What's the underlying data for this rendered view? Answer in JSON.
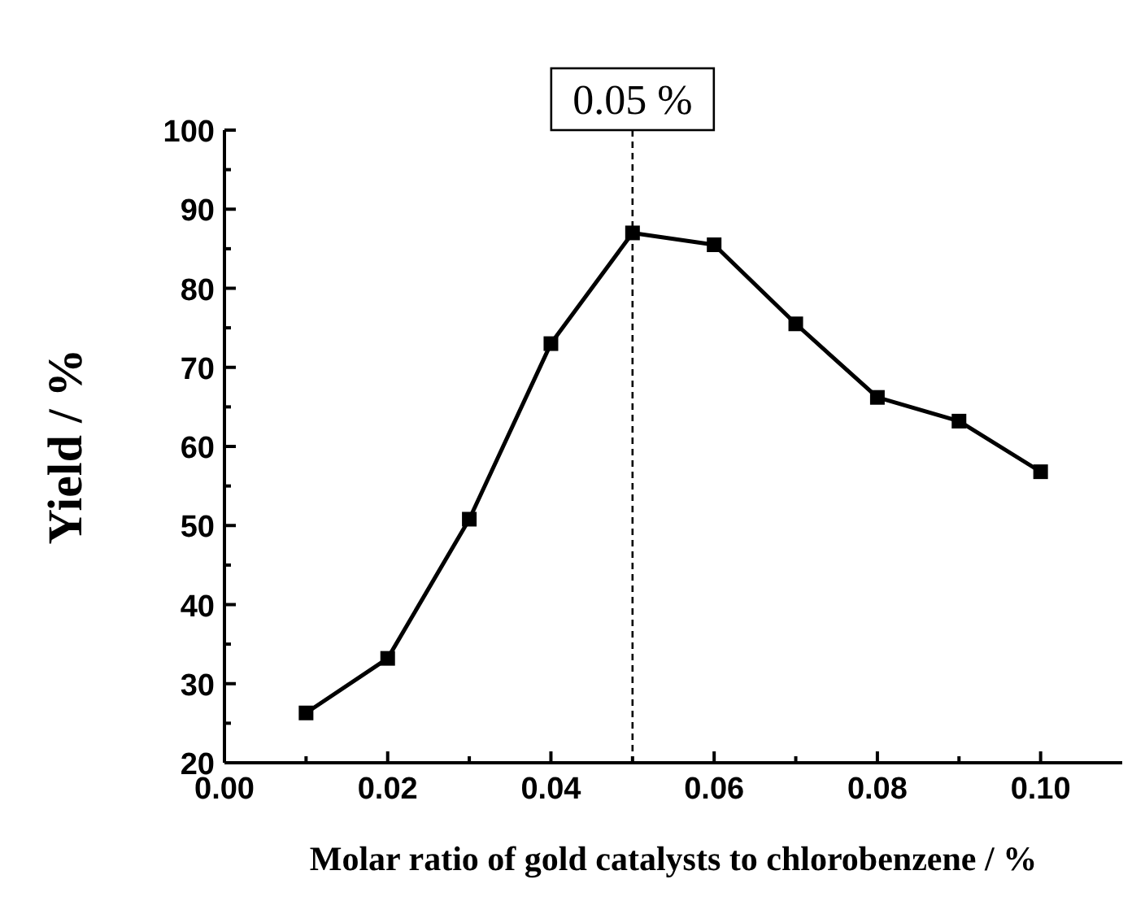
{
  "chart_data": {
    "type": "line",
    "xlabel": "Molar ratio of gold catalysts to chlorobenzene / %",
    "ylabel": "Yield / %",
    "x": [
      0.01,
      0.02,
      0.03,
      0.04,
      0.05,
      0.06,
      0.07,
      0.08,
      0.09,
      0.1
    ],
    "series": [
      {
        "color": "#000000",
        "values": [
          26.3,
          33.2,
          50.8,
          73,
          87,
          85.5,
          75.5,
          66.2,
          63.2,
          56.8
        ]
      }
    ],
    "marker": "square",
    "line_style": "solid",
    "grid": false,
    "xlim": [
      0,
      0.11
    ],
    "ylim": [
      20,
      100
    ],
    "xticks": [
      {
        "value": 0,
        "label": "0.00"
      },
      {
        "value": 0.01,
        "label": null
      },
      {
        "value": 0.02,
        "label": "0.02"
      },
      {
        "value": 0.03,
        "label": null
      },
      {
        "value": 0.04,
        "label": "0.04"
      },
      {
        "value": 0.05,
        "label": null
      },
      {
        "value": 0.06,
        "label": "0.06"
      },
      {
        "value": 0.07,
        "label": null
      },
      {
        "value": 0.08,
        "label": "0.08"
      },
      {
        "value": 0.09,
        "label": null
      },
      {
        "value": 0.1,
        "label": "0.10"
      }
    ],
    "yticks": [
      20,
      {
        "value": 25,
        "label": null
      },
      30,
      {
        "value": 35,
        "label": null
      },
      40,
      {
        "value": 45,
        "label": null
      },
      50,
      {
        "value": 55,
        "label": null
      },
      60,
      {
        "value": 65,
        "label": null
      },
      70,
      {
        "value": 75,
        "label": null
      },
      80,
      {
        "value": 85,
        "label": null
      },
      90,
      {
        "value": 95,
        "label": null
      },
      100
    ],
    "ref_lines": [
      {
        "axis": "x",
        "value": 0.05,
        "label": "0.05 %",
        "line_style": "dashed",
        "color": "#000000"
      }
    ]
  }
}
